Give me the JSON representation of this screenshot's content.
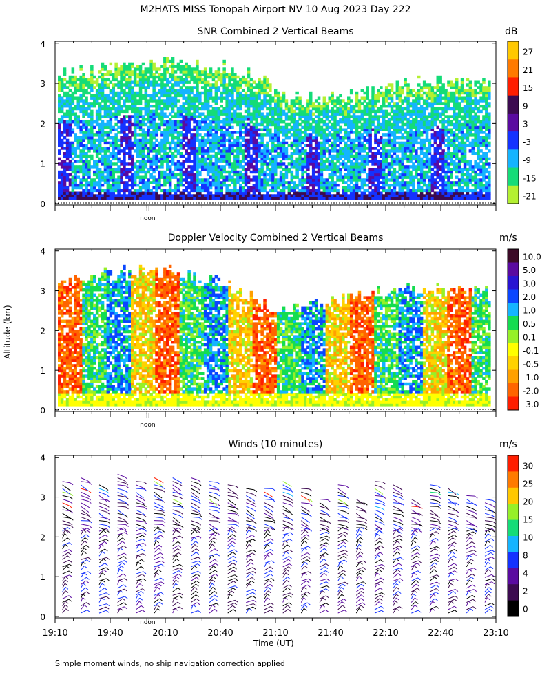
{
  "title": "M2HATS MISS Tonopah Airport NV  10 Aug 2023 Day 222",
  "footnote": "Simple moment winds, no ship navigation correction applied",
  "y_axis_label": "Altitude (km)",
  "x_axis_label": "Time (UT)",
  "noon_marker": "noon",
  "chart_data": [
    {
      "type": "heatmap",
      "title": "SNR Combined 2 Vertical Beams",
      "colorbar_unit": "dB",
      "yticks": [
        "0",
        "1",
        "2",
        "3",
        "4"
      ],
      "ylim": [
        0,
        4
      ],
      "xlim": [
        "19:10",
        "23:10"
      ],
      "colorbar": {
        "labels": [
          "27",
          "21",
          "15",
          "9",
          "3",
          "-3",
          "-9",
          "-15",
          "-21"
        ],
        "colors": [
          "#ffc800",
          "#ff7a00",
          "#ff1e00",
          "#3c0a50",
          "#5a0aa0",
          "#1432ff",
          "#14b4ff",
          "#14dc78",
          "#b4f032"
        ]
      },
      "field": {
        "description": "SNR rises from green (-15 dB) aloft to blue (-3 dB) near ground; noisy vertical plumes",
        "top_of_signal_km": [
          3.2,
          3.3,
          3.4,
          3.5,
          3.4,
          3.4,
          3.1,
          2.6,
          2.6,
          2.7,
          2.9,
          3.0,
          3.0,
          3.0
        ]
      }
    },
    {
      "type": "heatmap",
      "title": "Doppler Velocity Combined 2 Vertical Beams",
      "colorbar_unit": "m/s",
      "yticks": [
        "0",
        "1",
        "2",
        "3",
        "4"
      ],
      "ylim": [
        0,
        4
      ],
      "xlim": [
        "19:10",
        "23:10"
      ],
      "colorbar": {
        "labels": [
          "10.0",
          "5.0",
          "3.0",
          "2.0",
          "1.0",
          "0.5",
          "0.1",
          "-0.1",
          "-0.5",
          "-1.0",
          "-2.0",
          "-3.0"
        ],
        "colors": [
          "#3c0a28",
          "#5a0aa0",
          "#2814d2",
          "#0a46ff",
          "#14b4ff",
          "#14dc50",
          "#96f028",
          "#ffff00",
          "#ffd200",
          "#ffa000",
          "#ff6400",
          "#ff1e00"
        ]
      },
      "field": {
        "description": "Mixed updrafts (blue) and downdrafts (red/orange) in vertical columns; yellow near surface",
        "top_of_signal_km": [
          3.2,
          3.3,
          3.5,
          3.5,
          3.4,
          3.2,
          2.7,
          2.5,
          2.6,
          2.8,
          3.0,
          3.0,
          3.0,
          2.9
        ]
      }
    },
    {
      "type": "scatter",
      "title": "Winds (10 minutes)",
      "colorbar_unit": "m/s",
      "yticks": [
        "0",
        "1",
        "2",
        "3",
        "4"
      ],
      "ylim": [
        0,
        4
      ],
      "xticks": [
        "19:10",
        "19:40",
        "20:10",
        "20:40",
        "21:10",
        "21:40",
        "22:10",
        "22:40",
        "23:10"
      ],
      "xlim": [
        "19:10",
        "23:10"
      ],
      "colorbar": {
        "labels": [
          "30",
          "25",
          "20",
          "15",
          "10",
          "8",
          "4",
          "2",
          "0"
        ],
        "colors": [
          "#ff1e00",
          "#ff7a00",
          "#ffc800",
          "#96f028",
          "#14dc78",
          "#14b4ff",
          "#1432ff",
          "#5a0aa0",
          "#3c0a50",
          "#000000"
        ]
      },
      "profiles_minutes": [
        10,
        20,
        30,
        40,
        50,
        60,
        70,
        80,
        90,
        100,
        110,
        120,
        130,
        140,
        150,
        160,
        170,
        180,
        190,
        200,
        210,
        220,
        230,
        240
      ],
      "profile_top_km": [
        3.4,
        3.5,
        3.3,
        3.6,
        3.4,
        3.5,
        3.5,
        3.5,
        3.4,
        3.3,
        3.2,
        3.2,
        3.4,
        3.2,
        3.0,
        3.3,
        3.0,
        3.4,
        3.3,
        3.0,
        3.3,
        3.2,
        3.1,
        3.0
      ],
      "typical_speed_ms": 4
    }
  ]
}
